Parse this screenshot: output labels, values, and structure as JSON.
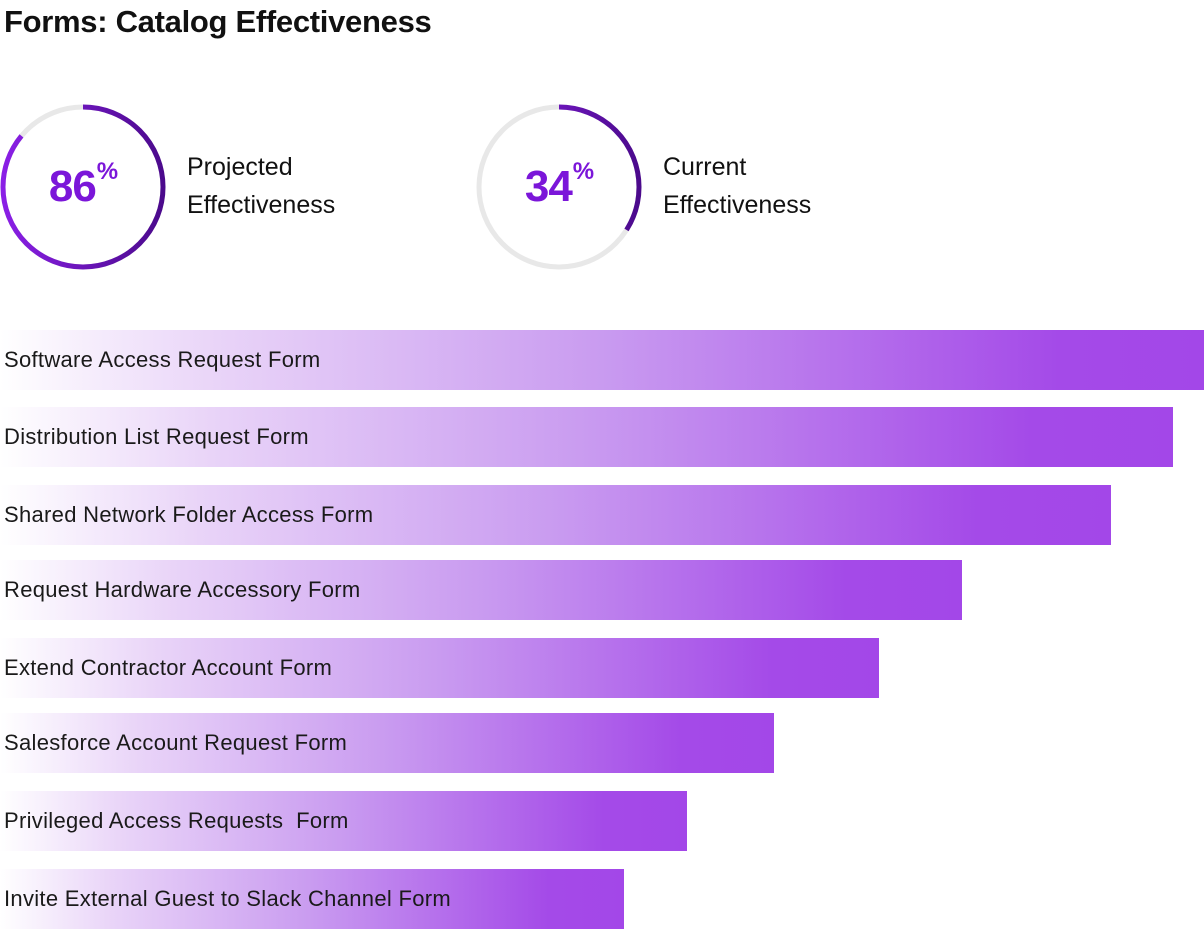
{
  "title": "Forms: Catalog Effectiveness",
  "kpis": [
    {
      "value": 86,
      "value_text": "86",
      "unit": "%",
      "label_line1": "Projected",
      "label_line2": "Effectiveness"
    },
    {
      "value": 34,
      "value_text": "34",
      "unit": "%",
      "label_line1": "Current",
      "label_line2": "Effectiveness"
    }
  ],
  "colors": {
    "ring_start": "#8a1fe6",
    "ring_end": "#4b0a8c",
    "ring_track": "#e8e8e8",
    "value_text": "#7b16d9"
  },
  "chart_data": {
    "type": "bar",
    "orientation": "horizontal",
    "title": "Forms: Catalog Effectiveness",
    "xlabel": "",
    "ylabel": "",
    "note": "No values printed; values are relative bar lengths (fraction of longest bar)",
    "categories": [
      "Software Access Request Form",
      "Distribution List Request Form",
      "Shared Network Folder Access Form",
      "Request Hardware Accessory Form",
      "Extend Contractor Account Form",
      "Salesforce Account Request Form",
      "Privileged Access Requests  Form",
      "Invite External Guest to Slack Channel Form"
    ],
    "values": [
      1.0,
      0.974,
      0.923,
      0.799,
      0.73,
      0.643,
      0.571,
      0.518
    ],
    "xlim": [
      0,
      1
    ]
  }
}
